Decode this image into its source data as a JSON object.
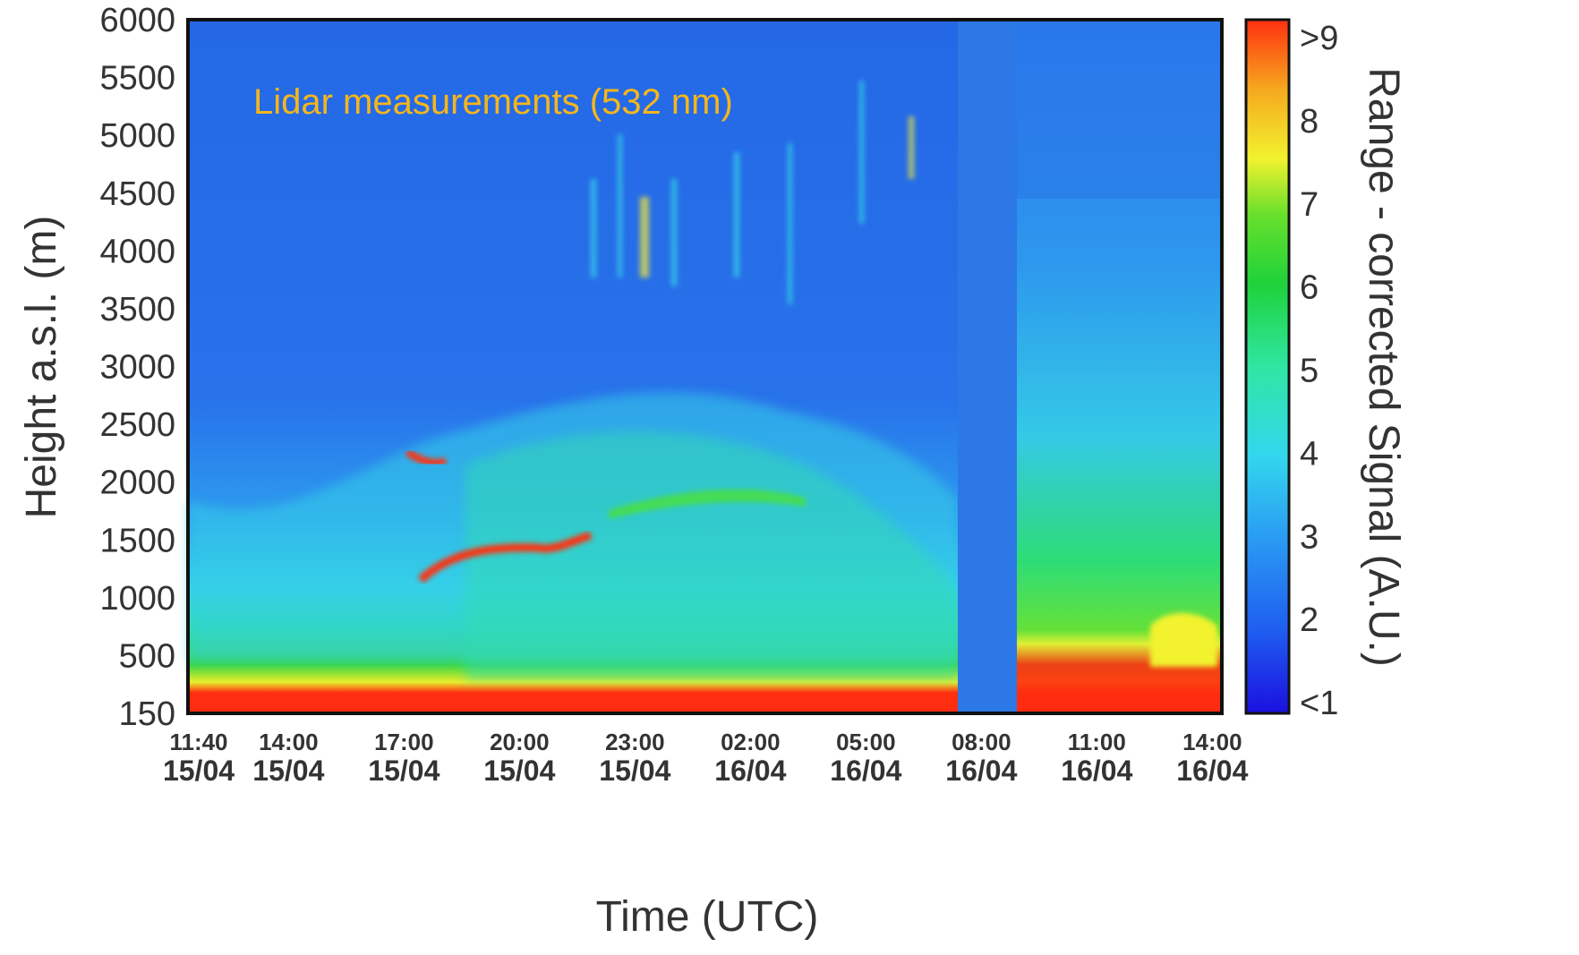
{
  "chart_data": {
    "type": "heatmap",
    "title": "Lidar measurements (532 nm)",
    "xlabel": "Time (UTC)",
    "ylabel": "Height a.s.l. (m)",
    "ylim": [
      150,
      6000
    ],
    "y_ticks": [
      "6000",
      "5500",
      "5000",
      "4500",
      "4000",
      "3500",
      "3000",
      "2500",
      "2000",
      "1500",
      "1000",
      "500",
      "150"
    ],
    "x_ticks": [
      {
        "time": "11:40",
        "date": "15/04"
      },
      {
        "time": "14:00",
        "date": "15/04"
      },
      {
        "time": "17:00",
        "date": "15/04"
      },
      {
        "time": "20:00",
        "date": "15/04"
      },
      {
        "time": "23:00",
        "date": "15/04"
      },
      {
        "time": "02:00",
        "date": "16/04"
      },
      {
        "time": "05:00",
        "date": "16/04"
      },
      {
        "time": "08:00",
        "date": "16/04"
      },
      {
        "time": "11:00",
        "date": "16/04"
      },
      {
        "time": "14:00",
        "date": "16/04"
      }
    ],
    "colorbar": {
      "label": "Range - corrected Signal (A.U.)",
      "ticks": [
        ">9",
        "8",
        "7",
        "6",
        "5",
        "4",
        "3",
        "2",
        "<1"
      ],
      "range": [
        1,
        9
      ],
      "colors": [
        "#1a10e0",
        "#1f5ef0",
        "#2a9af2",
        "#33d6ee",
        "#2fe6a2",
        "#1fd23a",
        "#6ae02c",
        "#f2f22e",
        "#f6a81e",
        "#ff3010"
      ]
    },
    "data_gap": {
      "start": "08:00 16/04",
      "end": "10:00 16/04"
    },
    "grid": false,
    "title_color": "#f6b61a"
  }
}
